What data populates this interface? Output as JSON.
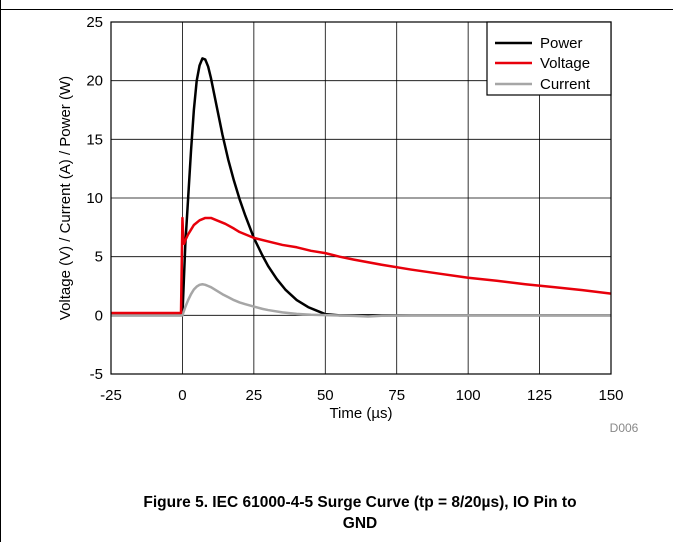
{
  "chart_data": {
    "type": "line",
    "xlabel_prefix": "Time (",
    "xlabel_unit": "µs",
    "xlabel_suffix": ")",
    "ylabel": "Voltage (V) / Current (A) / Power (W)",
    "xlim": [
      -25,
      150
    ],
    "ylim": [
      -5,
      25
    ],
    "x_ticks": [
      -25,
      0,
      25,
      50,
      75,
      100,
      125,
      150
    ],
    "y_ticks": [
      -5,
      0,
      5,
      10,
      15,
      20,
      25
    ],
    "grid": true,
    "legend_position": "top-right",
    "series": [
      {
        "name": "Power",
        "color": "#000000",
        "x": [
          -25,
          0,
          0.5,
          1,
          2,
          3,
          4,
          5,
          6,
          7,
          8,
          9,
          10,
          12,
          14,
          16,
          18,
          20,
          22,
          25,
          28,
          30,
          33,
          36,
          40,
          44,
          48,
          50,
          55,
          60,
          70,
          80,
          100,
          125,
          150
        ],
        "y": [
          0,
          0,
          3,
          6,
          10,
          14,
          17.5,
          20,
          21.3,
          21.9,
          21.8,
          21.2,
          20.2,
          17.8,
          15.4,
          13.3,
          11.5,
          9.9,
          8.5,
          6.6,
          5.1,
          4.2,
          3.1,
          2.2,
          1.3,
          0.7,
          0.3,
          0.1,
          0,
          0,
          0,
          0,
          0,
          0,
          0
        ]
      },
      {
        "name": "Voltage",
        "color": "#e8000b",
        "x": [
          -25,
          -0.5,
          0,
          0.3,
          0.6,
          1,
          2,
          3,
          4,
          6,
          8,
          10,
          12,
          15,
          18,
          20,
          25,
          30,
          35,
          40,
          45,
          50,
          55,
          60,
          70,
          80,
          90,
          100,
          110,
          120,
          130,
          140,
          150
        ],
        "y": [
          0.2,
          0.2,
          8.3,
          6.5,
          6.1,
          6.4,
          6.9,
          7.3,
          7.7,
          8.1,
          8.3,
          8.3,
          8.1,
          7.8,
          7.4,
          7.1,
          6.6,
          6.3,
          6.0,
          5.8,
          5.5,
          5.3,
          5.0,
          4.75,
          4.3,
          3.9,
          3.55,
          3.2,
          2.95,
          2.65,
          2.4,
          2.15,
          1.85
        ]
      },
      {
        "name": "Current",
        "color": "#a6a6a6",
        "x": [
          -25,
          0,
          1,
          2,
          3,
          4,
          5,
          6,
          7,
          8,
          9,
          10,
          12,
          14,
          16,
          18,
          20,
          22,
          25,
          28,
          30,
          35,
          40,
          45,
          50,
          60,
          65,
          70,
          80,
          100,
          125,
          150
        ],
        "y": [
          0,
          0,
          0.7,
          1.3,
          1.8,
          2.2,
          2.45,
          2.6,
          2.65,
          2.6,
          2.5,
          2.4,
          2.1,
          1.8,
          1.55,
          1.3,
          1.1,
          0.95,
          0.75,
          0.55,
          0.45,
          0.25,
          0.12,
          0.05,
          0.02,
          -0.05,
          -0.1,
          -0.03,
          0,
          0,
          0,
          0
        ]
      }
    ]
  },
  "figure_code": "D006",
  "caption_line1": "Figure 5. IEC 61000-4-5 Surge Curve (tp = 8/20µs), IO Pin to",
  "caption_line2": "GND"
}
